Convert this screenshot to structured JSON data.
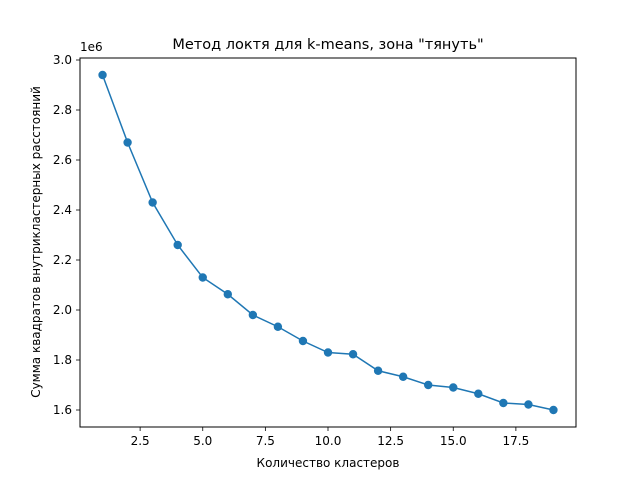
{
  "chart_data": {
    "type": "line",
    "title": "Метод локтя для k-means, зона \"тянуть\"",
    "xlabel": "Количество кластеров",
    "ylabel": "Сумма квадратов внутрикластерных расстояний",
    "y_offset_label": "1e6",
    "x": [
      1,
      2,
      3,
      4,
      5,
      6,
      7,
      8,
      9,
      10,
      11,
      12,
      13,
      14,
      15,
      16,
      17,
      18,
      19
    ],
    "series": [
      {
        "values": [
          2.94,
          2.67,
          2.43,
          2.26,
          2.13,
          2.063,
          1.98,
          1.933,
          1.876,
          1.83,
          1.823,
          1.757,
          1.733,
          1.7,
          1.69,
          1.665,
          1.628,
          1.622,
          1.6
        ],
        "color": "#1f77b4"
      }
    ],
    "xlim": [
      0.1,
      19.9
    ],
    "ylim": [
      1.532,
      3.008
    ],
    "x_ticks": [
      2.5,
      5.0,
      7.5,
      10.0,
      12.5,
      15.0,
      17.5
    ],
    "x_tick_labels": [
      "2.5",
      "5.0",
      "7.5",
      "10.0",
      "12.5",
      "15.0",
      "17.5"
    ],
    "y_ticks": [
      1.6,
      1.8,
      2.0,
      2.2,
      2.4,
      2.6,
      2.8,
      3.0
    ],
    "y_tick_labels": [
      "1.6",
      "1.8",
      "2.0",
      "2.2",
      "2.4",
      "2.6",
      "2.8",
      "3.0"
    ],
    "grid": false,
    "marker": "circle"
  }
}
